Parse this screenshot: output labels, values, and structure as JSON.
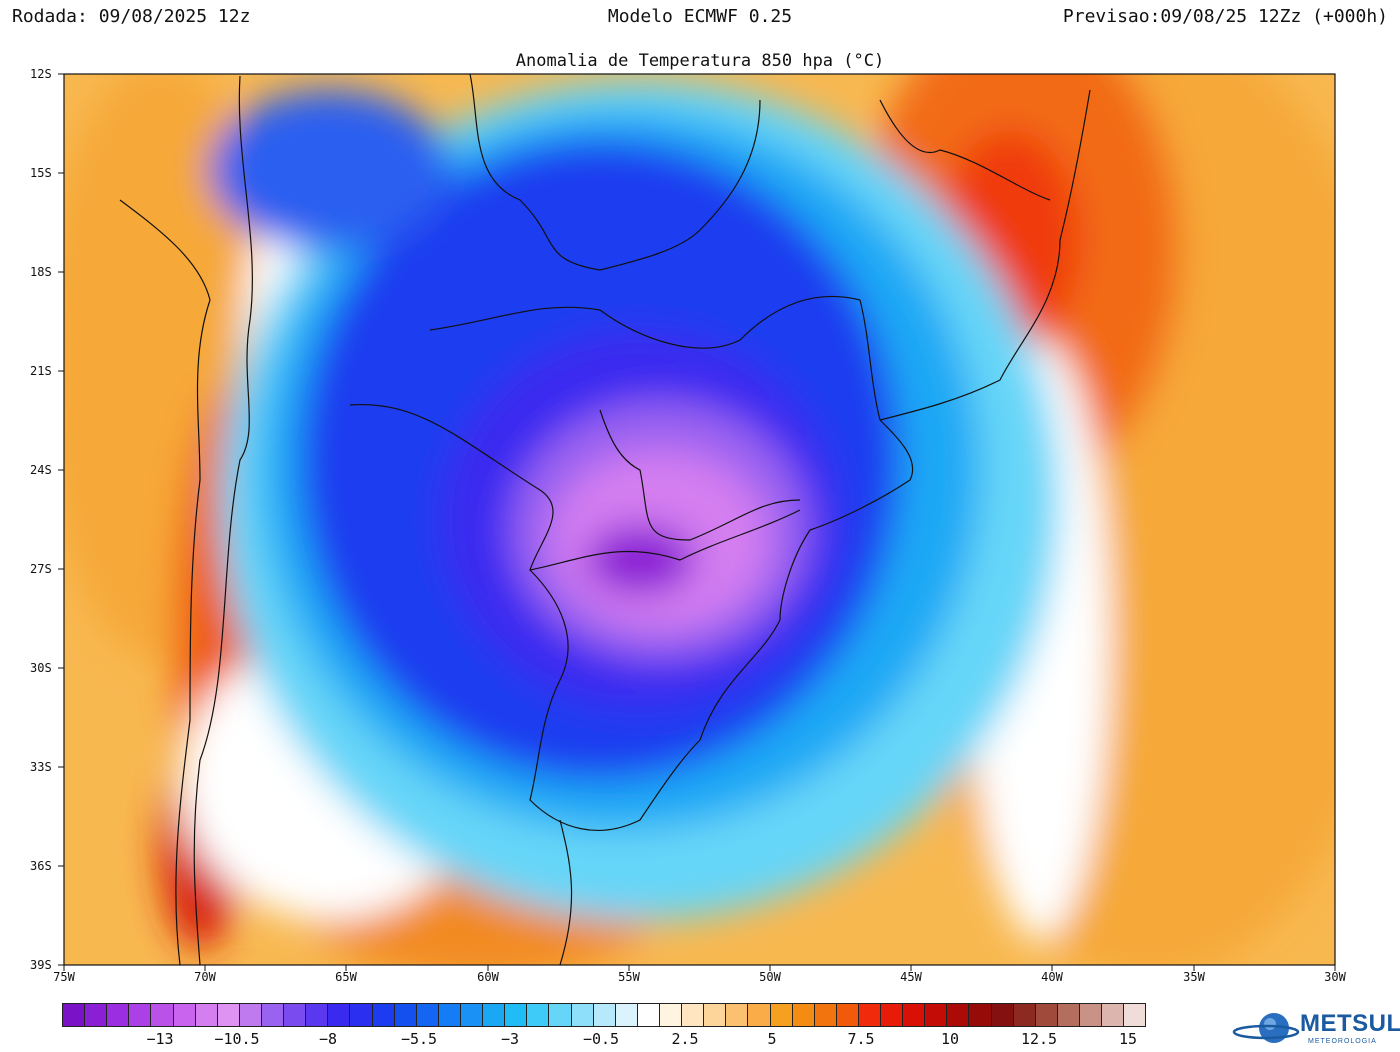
{
  "header": {
    "run": "Rodada: 09/08/2025 12z",
    "model": "Modelo ECMWF 0.25",
    "valid": "Previsao:09/08/25 12Zz (+000h)"
  },
  "map": {
    "title": "Anomalia de Temperatura 850 hpa (°C)",
    "lat_labels": [
      "12S",
      "15S",
      "18S",
      "21S",
      "24S",
      "27S",
      "30S",
      "33S",
      "36S",
      "39S"
    ],
    "lon_labels": [
      "75W",
      "70W",
      "65W",
      "60W",
      "55W",
      "50W",
      "45W",
      "40W",
      "35W",
      "30W"
    ],
    "field_colors": {
      "deep_cold": "#8a1fd6",
      "cold": "#d47ef0",
      "cool": "#2a2ff0",
      "mild_cool": "#1aa8f5",
      "neutral": "#ffffff",
      "warm": "#f6a020",
      "hot": "#f02a0a"
    }
  },
  "legend": {
    "colors": [
      "#7a12c8",
      "#8a1fd6",
      "#9a2ee0",
      "#aa40e6",
      "#ba52ea",
      "#c864ee",
      "#d47ef0",
      "#de92f2",
      "#c07af0",
      "#9a62f0",
      "#7a4cf0",
      "#5a38f0",
      "#3a2af0",
      "#2a2ff0",
      "#1c3cf0",
      "#1450f0",
      "#1466f2",
      "#147cf4",
      "#1a92f5",
      "#1aa8f5",
      "#20bcf6",
      "#3ecbf7",
      "#66d6f8",
      "#8edff9",
      "#b6e9fb",
      "#daf3fd",
      "#ffffff",
      "#fff4e0",
      "#ffe6c0",
      "#fdd49a",
      "#fbc070",
      "#f9ac48",
      "#f6a020",
      "#f48c14",
      "#f2740e",
      "#f05a0a",
      "#f02a0a",
      "#e81a08",
      "#d81006",
      "#c40c06",
      "#ac0a06",
      "#960a08",
      "#841010",
      "#8c2a22",
      "#a04a3c",
      "#b46e5e",
      "#c89286",
      "#dcb6ae",
      "#f0dcd8"
    ],
    "labels": [
      "−13",
      "−10.5",
      "−8",
      "−5.5",
      "−3",
      "−0.5",
      "2.5",
      "5",
      "7.5",
      "10",
      "12.5",
      "15"
    ]
  },
  "logo": {
    "name": "METSUL",
    "sub": "METEOROLOGIA"
  }
}
